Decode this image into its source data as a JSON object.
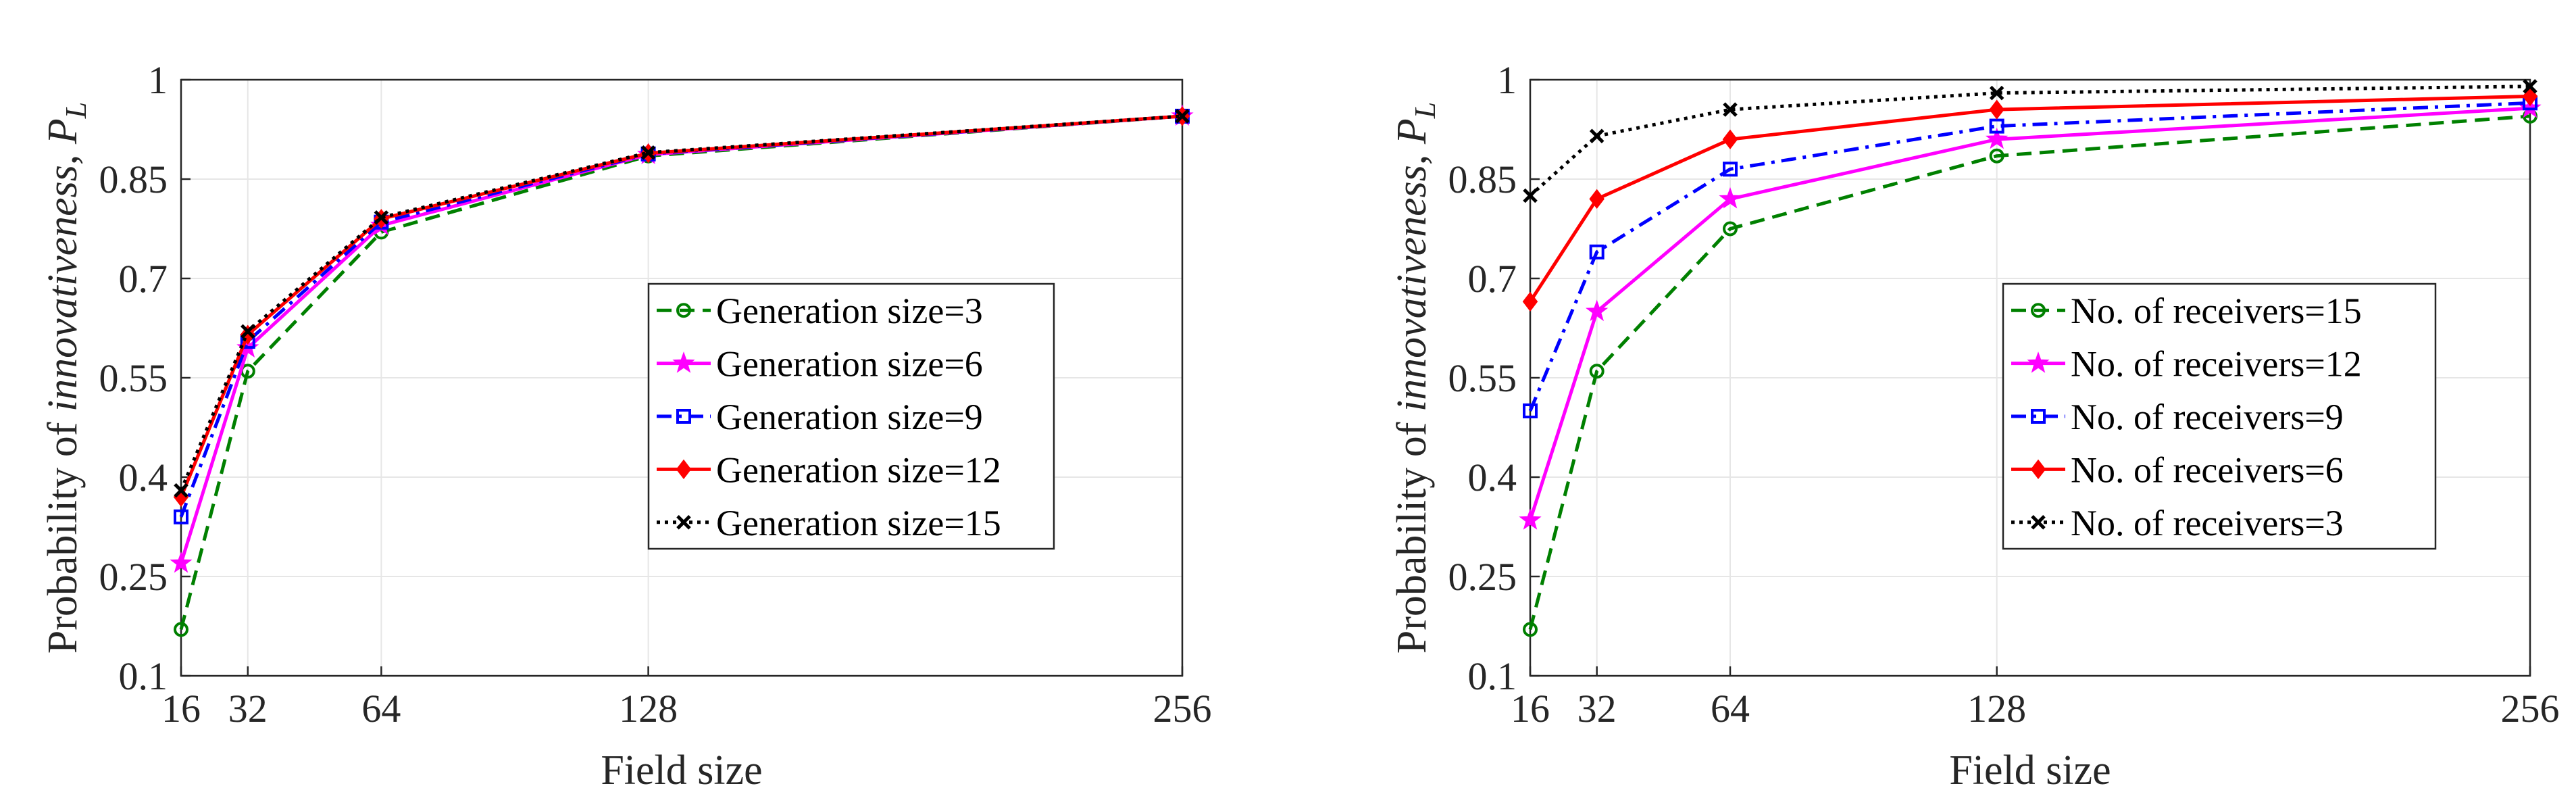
{
  "chart_data": [
    {
      "type": "line",
      "title": "",
      "xlabel": "Field size",
      "ylabel_prefix": "Probability of ",
      "ylabel_italic": "innovativeness",
      "ylabel_sep": ", ",
      "ylabel_symbol": "P",
      "ylabel_sub": "L",
      "x": [
        16,
        32,
        64,
        128,
        256
      ],
      "xlim": [
        16,
        256
      ],
      "ylim": [
        0.1,
        1
      ],
      "xticks": [
        "16",
        "32",
        "64",
        "128",
        "256"
      ],
      "yticks": [
        "0.1",
        "0.25",
        "0.4",
        "0.55",
        "0.7",
        "0.85",
        "1"
      ],
      "legend_position": "center-right",
      "series": [
        {
          "name": "Generation size=3",
          "color": "#008000",
          "dash": "dashed",
          "marker": "circle",
          "values": [
            0.17,
            0.56,
            0.77,
            0.885,
            0.945
          ]
        },
        {
          "name": "Generation size=6",
          "color": "#ff00ff",
          "dash": "solid",
          "marker": "star",
          "values": [
            0.27,
            0.595,
            0.78,
            0.887,
            0.945
          ]
        },
        {
          "name": "Generation size=9",
          "color": "#0000ff",
          "dash": "dashdot",
          "marker": "square",
          "values": [
            0.34,
            0.605,
            0.785,
            0.888,
            0.945
          ]
        },
        {
          "name": "Generation size=12",
          "color": "#ff0000",
          "dash": "solid",
          "marker": "diamond",
          "values": [
            0.37,
            0.615,
            0.79,
            0.889,
            0.945
          ]
        },
        {
          "name": "Generation size=15",
          "color": "#000000",
          "dash": "dotted",
          "marker": "x",
          "values": [
            0.38,
            0.62,
            0.792,
            0.89,
            0.945
          ]
        }
      ]
    },
    {
      "type": "line",
      "title": "",
      "xlabel": "Field size",
      "ylabel_prefix": "Probability of ",
      "ylabel_italic": "innovativeness",
      "ylabel_sep": ", ",
      "ylabel_symbol": "P",
      "ylabel_sub": "L",
      "x": [
        16,
        32,
        64,
        128,
        256
      ],
      "xlim": [
        16,
        256
      ],
      "ylim": [
        0.1,
        1
      ],
      "xticks": [
        "16",
        "32",
        "64",
        "128",
        "256"
      ],
      "yticks": [
        "0.1",
        "0.25",
        "0.4",
        "0.55",
        "0.7",
        "0.85",
        "1"
      ],
      "legend_position": "bottom-right",
      "series": [
        {
          "name": "No. of receivers=15",
          "color": "#008000",
          "dash": "dashed",
          "marker": "circle",
          "values": [
            0.17,
            0.56,
            0.775,
            0.885,
            0.945
          ]
        },
        {
          "name": "No. of receivers=12",
          "color": "#ff00ff",
          "dash": "solid",
          "marker": "star",
          "values": [
            0.335,
            0.65,
            0.82,
            0.91,
            0.957
          ]
        },
        {
          "name": "No. of receivers=9",
          "color": "#0000ff",
          "dash": "dashdot",
          "marker": "square",
          "values": [
            0.5,
            0.74,
            0.865,
            0.93,
            0.965
          ]
        },
        {
          "name": "No. of receivers=6",
          "color": "#ff0000",
          "dash": "solid",
          "marker": "diamond",
          "values": [
            0.665,
            0.82,
            0.91,
            0.955,
            0.975
          ]
        },
        {
          "name": "No. of receivers=3",
          "color": "#000000",
          "dash": "dotted",
          "marker": "x",
          "values": [
            0.825,
            0.915,
            0.955,
            0.98,
            0.99
          ]
        }
      ]
    }
  ]
}
